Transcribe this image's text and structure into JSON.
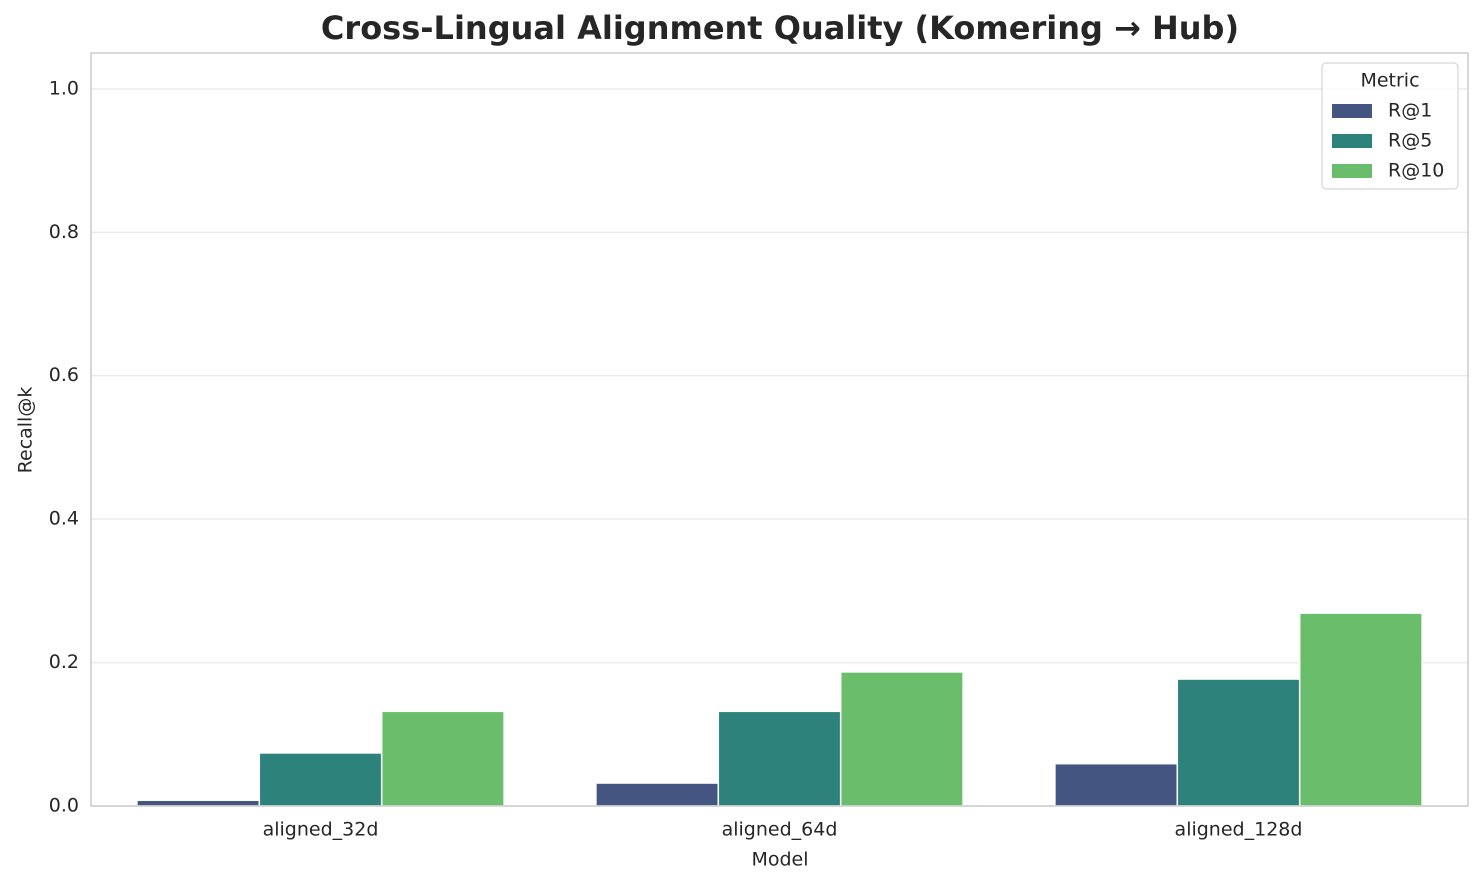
{
  "chart_data": {
    "type": "bar",
    "title": "Cross-Lingual Alignment Quality (Komering → Hub)",
    "x_label": "Model",
    "y_label": "Recall@k",
    "categories": [
      "aligned_32d",
      "aligned_64d",
      "aligned_128d"
    ],
    "series": [
      {
        "name": "R@1",
        "color": "#455581",
        "values": [
          0.008,
          0.032,
          0.059
        ]
      },
      {
        "name": "R@5",
        "color": "#2d827c",
        "values": [
          0.074,
          0.132,
          0.177
        ]
      },
      {
        "name": "R@10",
        "color": "#6abd6a",
        "values": [
          0.132,
          0.187,
          0.269
        ]
      }
    ],
    "legend_title": "Metric",
    "legend_position": "upper right",
    "ylim": [
      0,
      1.05
    ],
    "yticks": [
      {
        "value": 0,
        "label": "0.0"
      },
      0.2,
      0.4,
      0.6,
      0.8,
      {
        "value": 1,
        "label": "1.0"
      }
    ],
    "grid": true
  }
}
